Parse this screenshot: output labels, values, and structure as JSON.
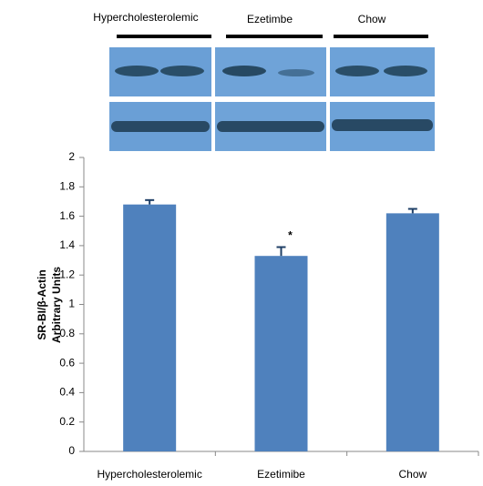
{
  "chart_data": {
    "type": "bar",
    "blot_labels": [
      "Hypercholesterolemic",
      "Ezetimbe",
      "Chow"
    ],
    "ylabel": [
      "SR-BI/β-Actin",
      "Arbitrary Units"
    ],
    "categories": [
      "Hypercholesterolemic",
      "Ezetimibe",
      "Chow"
    ],
    "values": [
      1.68,
      1.33,
      1.62
    ],
    "errors": [
      0.03,
      0.06,
      0.03
    ],
    "annotations": [
      {
        "text": "*",
        "category": 1
      }
    ],
    "color": "#4f81bd",
    "ylim": [
      0,
      2
    ],
    "yticks": [
      0,
      0.2,
      0.4,
      0.6,
      0.8,
      1,
      1.2,
      1.4,
      1.6,
      1.8,
      2
    ]
  }
}
